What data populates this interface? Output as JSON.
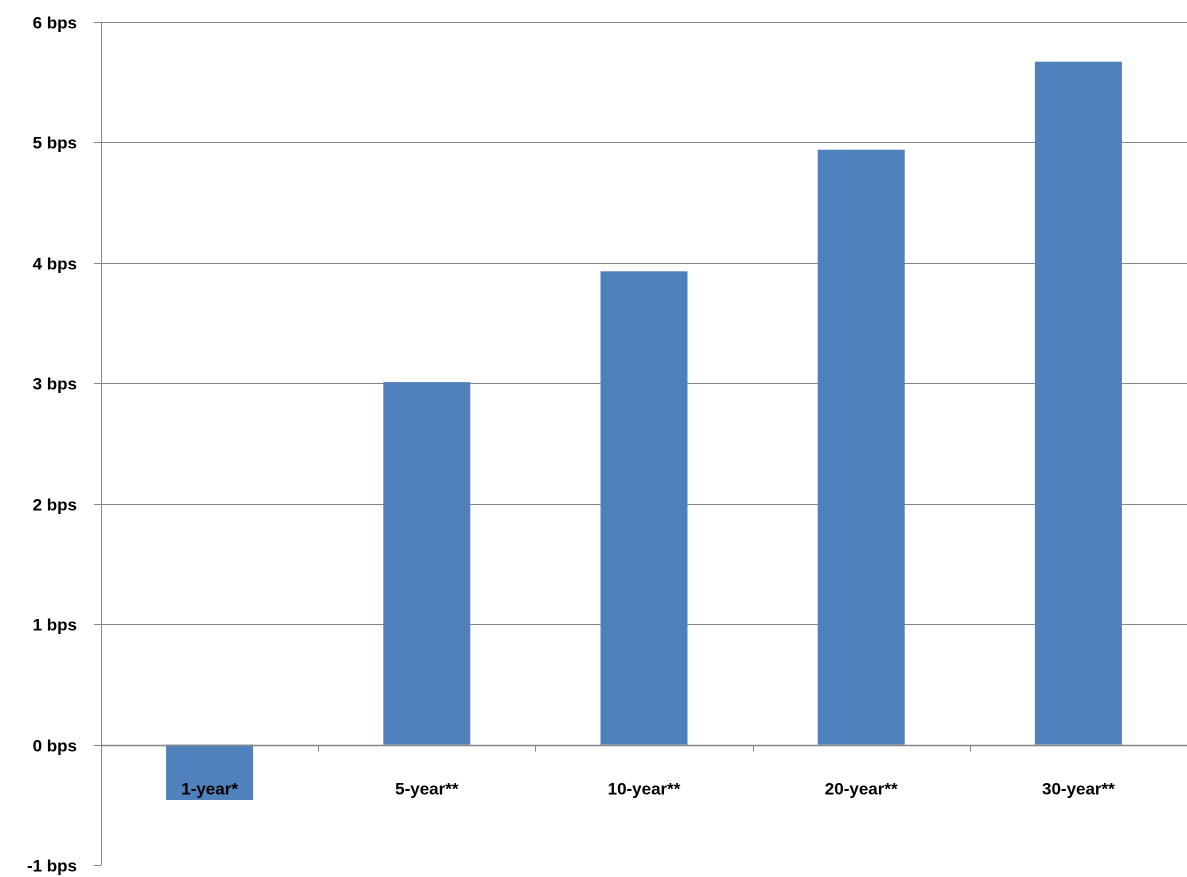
{
  "chart_data": {
    "type": "bar",
    "title": "",
    "xlabel": "",
    "ylabel": "",
    "categories": [
      "1-year*",
      "5-year**",
      "10-year**",
      "20-year**",
      "30-year**"
    ],
    "values": [
      -0.46,
      3.01,
      3.93,
      4.94,
      5.67
    ],
    "ylim": [
      -1,
      6
    ],
    "yticks": [
      -1,
      0,
      1,
      2,
      3,
      4,
      5,
      6
    ],
    "ytick_labels": [
      "-1 bps",
      "0 bps",
      "1 bps",
      "2 bps",
      "3 bps",
      "4 bps",
      "5 bps",
      "6 bps"
    ],
    "grid": true,
    "legend": "none",
    "colors": {
      "bar": "#4f81bd",
      "grid": "#868686",
      "axis": "#868686",
      "text": "#000000"
    }
  }
}
